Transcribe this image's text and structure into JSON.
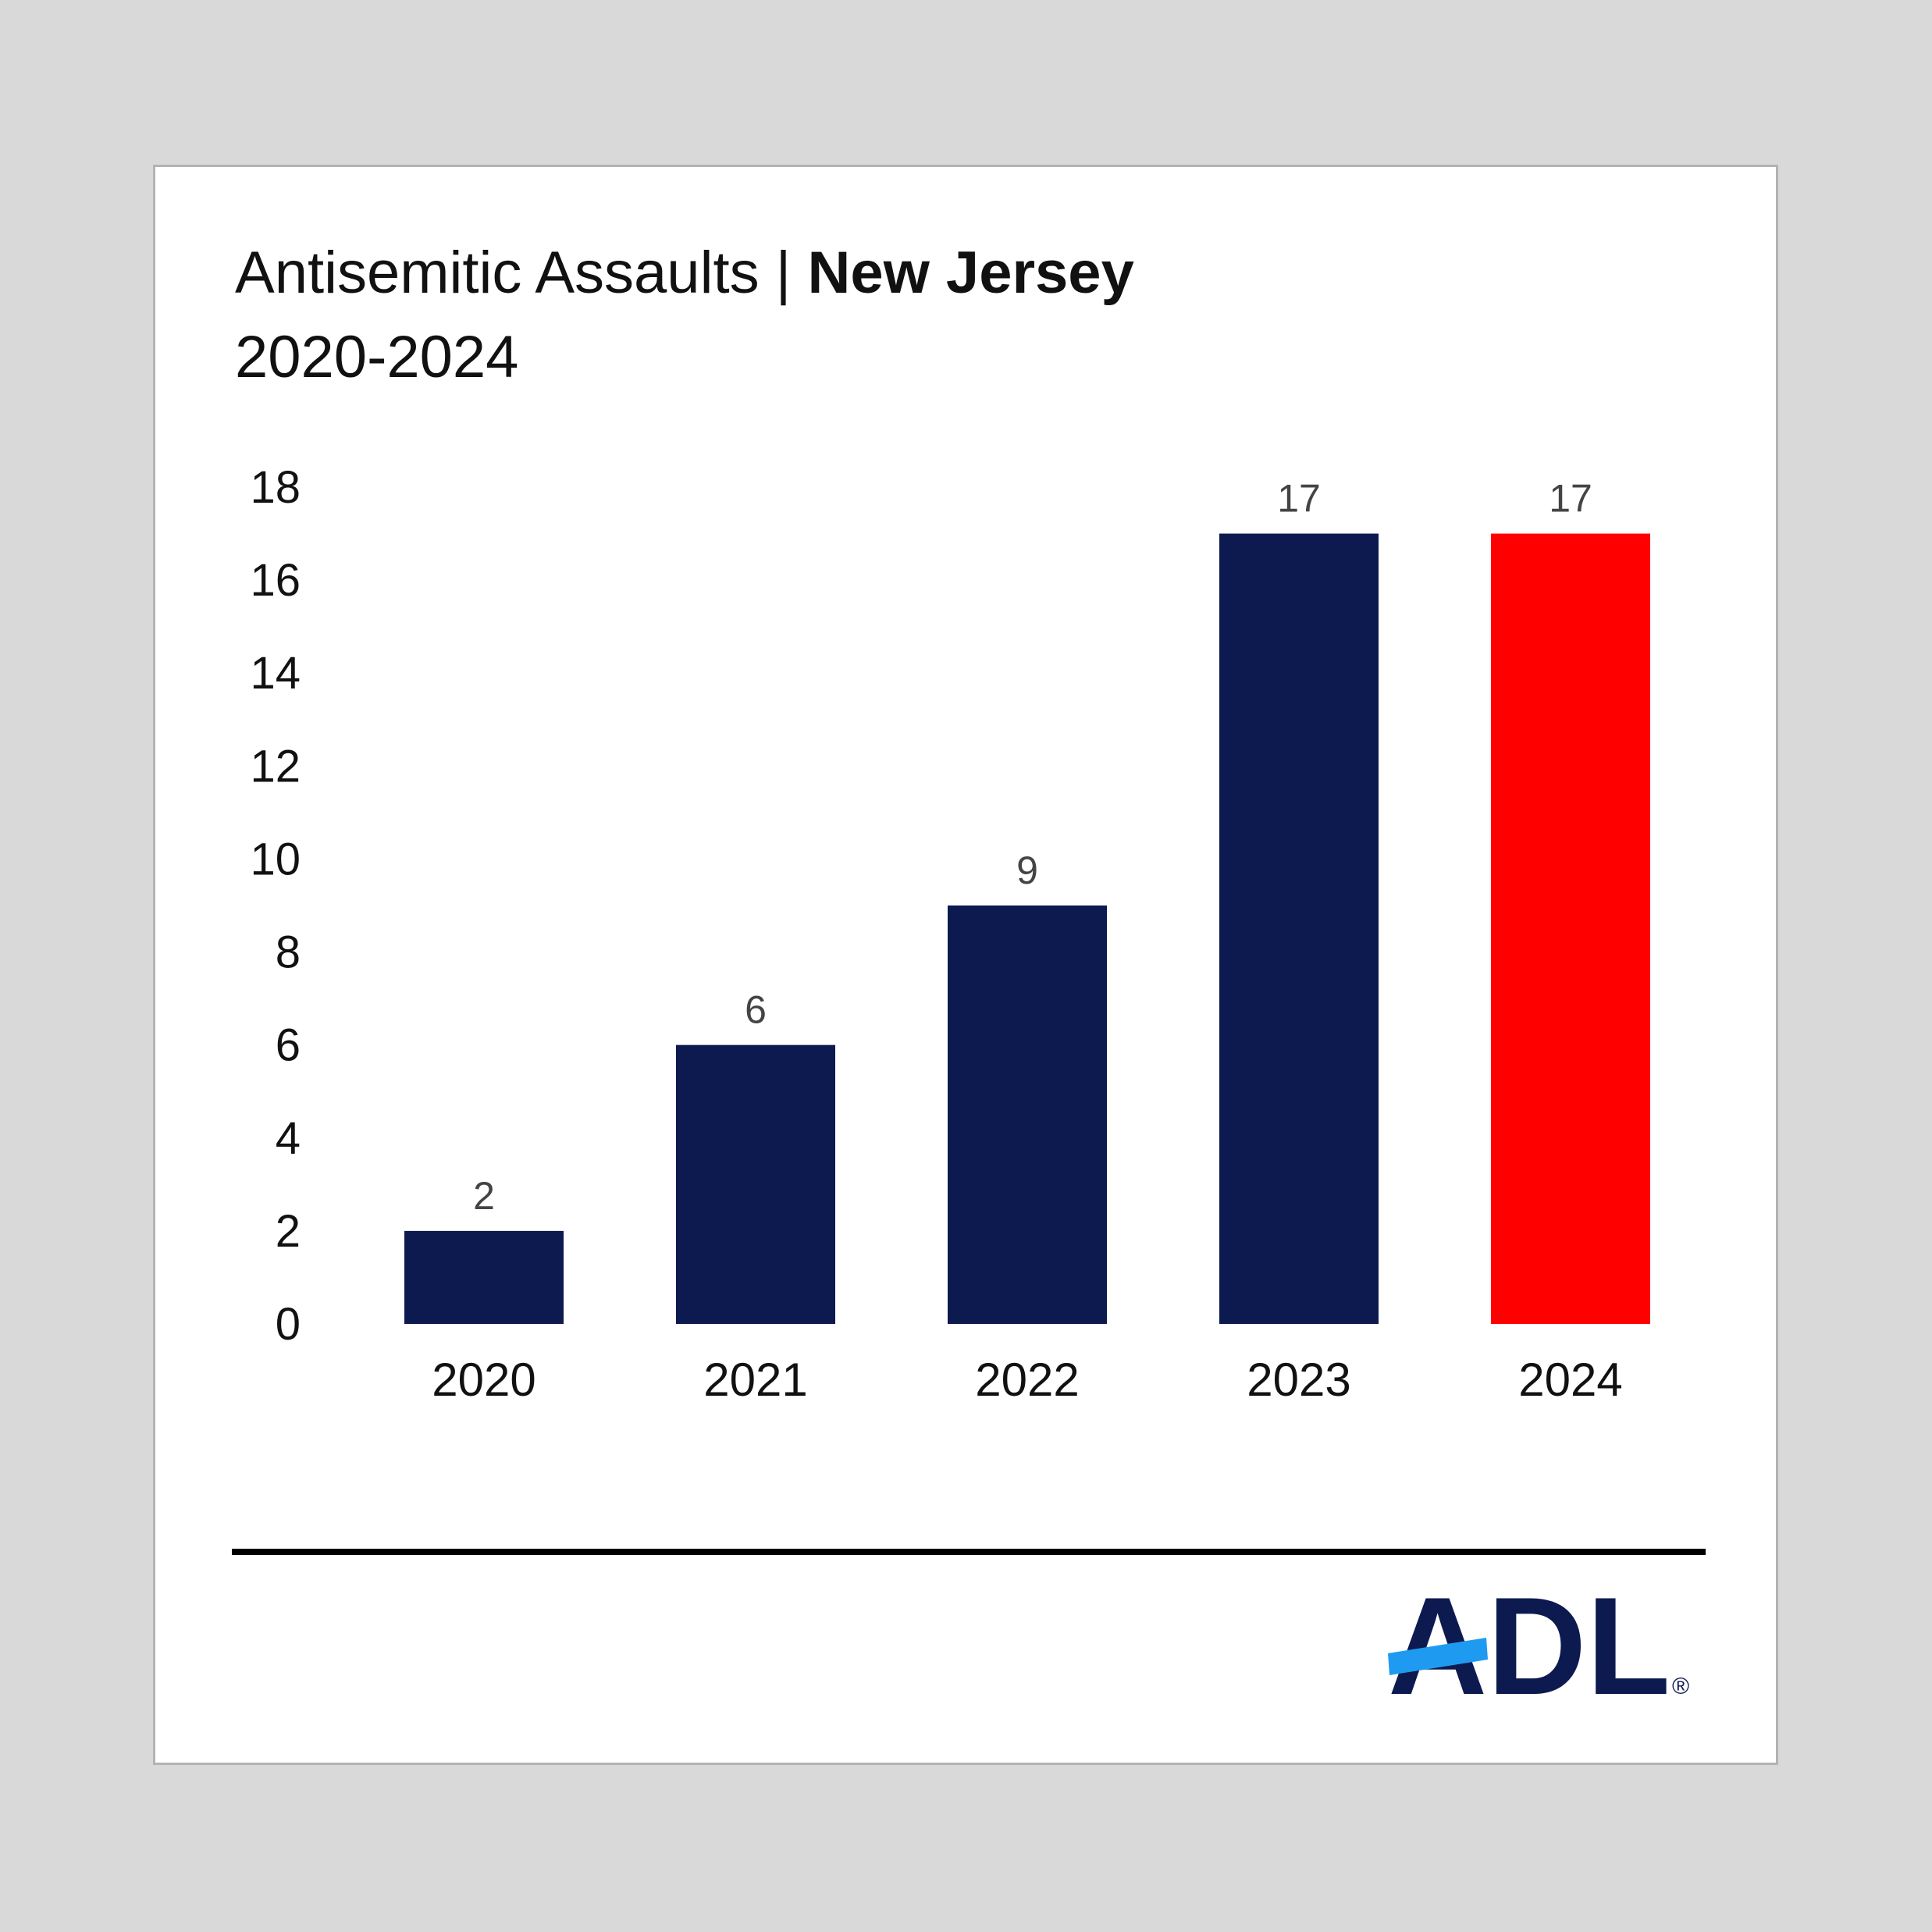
{
  "title": {
    "prefix": "Antisemitic Assaults | ",
    "emphasis": "New Jersey",
    "subtitle": "2020-2024"
  },
  "colors": {
    "bar_default": "#0d1a50",
    "bar_highlight": "#ff0000",
    "logo_navy": "#0d1a50",
    "logo_blue": "#1e9bf0"
  },
  "chart_data": {
    "type": "bar",
    "categories": [
      "2020",
      "2021",
      "2022",
      "2023",
      "2024"
    ],
    "values": [
      2,
      6,
      9,
      17,
      17
    ],
    "highlight_index": 4,
    "ylim": [
      0,
      18
    ],
    "yticks": [
      0,
      2,
      4,
      6,
      8,
      10,
      12,
      14,
      16,
      18
    ],
    "grid": false,
    "xlabel": "",
    "ylabel": ""
  },
  "logo": {
    "text": "ADL",
    "mark": "®"
  }
}
